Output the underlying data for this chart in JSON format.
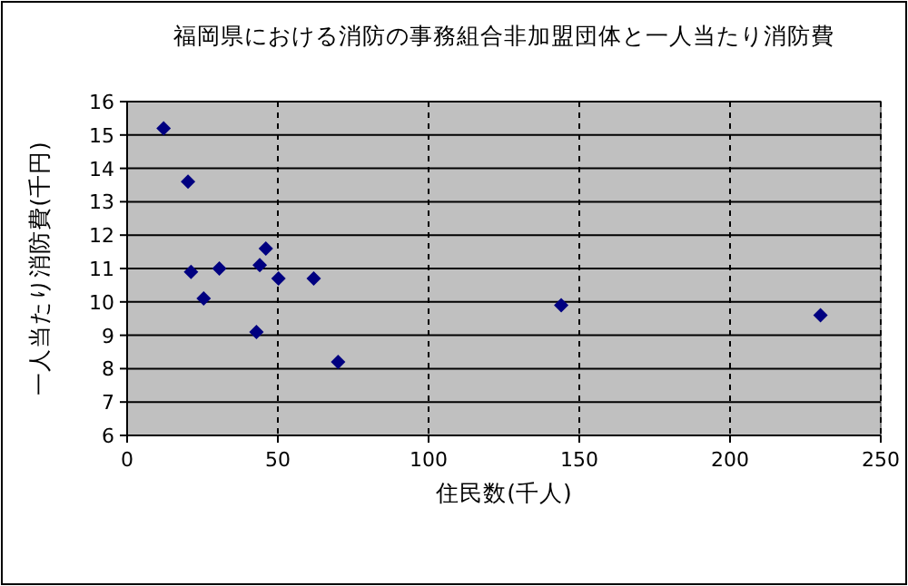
{
  "chart_data": {
    "type": "scatter",
    "title": "福岡県における消防の事務組合非加盟団体と一人当たり消防費",
    "xlabel": "住民数(千人)",
    "ylabel": "一人当たり消防費(千円)",
    "x": [
      12.1,
      20.2,
      21.2,
      30.6,
      25.4,
      44.0,
      46.0,
      42.9,
      50.2,
      61.9,
      70.0,
      144.0,
      230.0
    ],
    "values": [
      15.2,
      13.6,
      10.9,
      11.0,
      10.1,
      11.1,
      11.6,
      9.1,
      10.7,
      10.7,
      8.2,
      9.9,
      9.6
    ],
    "color": "#000080",
    "marker": "diamond",
    "grid": true,
    "xlim": [
      0,
      250
    ],
    "xticks": [
      0,
      50,
      100,
      150,
      200,
      250
    ],
    "ylim": [
      6,
      16
    ],
    "yticks": [
      6,
      7,
      8,
      9,
      10,
      11,
      12,
      13,
      14,
      15,
      16
    ]
  }
}
